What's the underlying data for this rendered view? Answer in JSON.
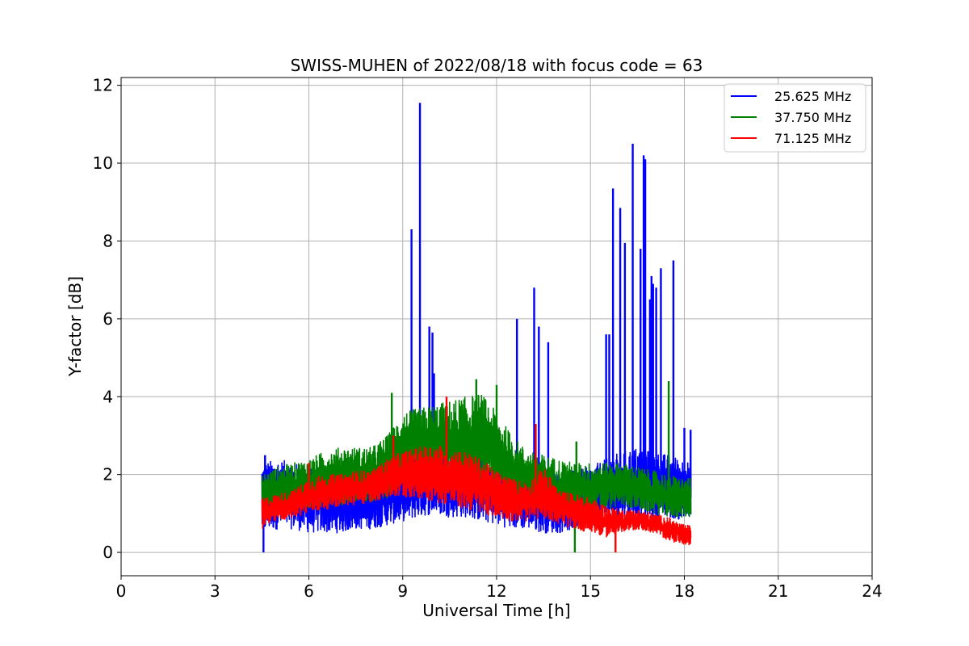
{
  "chart_data": {
    "type": "line",
    "title": "SWISS-MUHEN of 2022/08/18 with focus code = 63",
    "xlabel": "Universal Time [h]",
    "ylabel": "Y-factor [dB]",
    "xlim": [
      0,
      24
    ],
    "ylim": [
      -0.6,
      12.2
    ],
    "xticks": [
      0,
      3,
      6,
      9,
      12,
      15,
      18,
      21,
      24
    ],
    "yticks": [
      0,
      2,
      4,
      6,
      8,
      10,
      12
    ],
    "grid": true,
    "legend_position": "top-right",
    "series": [
      {
        "name": "25.625 MHz",
        "color": "#0000ff",
        "band": [
          [
            4.5,
            0.5,
            2.3
          ],
          [
            5.0,
            0.6,
            2.4
          ],
          [
            5.5,
            0.6,
            2.3
          ],
          [
            6.0,
            0.5,
            2.2
          ],
          [
            6.5,
            0.5,
            2.1
          ],
          [
            7.0,
            0.5,
            2.0
          ],
          [
            7.5,
            0.6,
            1.9
          ],
          [
            8.0,
            0.6,
            2.0
          ],
          [
            8.5,
            0.7,
            2.1
          ],
          [
            9.0,
            0.8,
            2.3
          ],
          [
            9.5,
            0.9,
            2.5
          ],
          [
            10.0,
            1.0,
            2.6
          ],
          [
            10.5,
            0.9,
            2.6
          ],
          [
            11.0,
            0.9,
            2.6
          ],
          [
            11.5,
            0.8,
            2.5
          ],
          [
            12.0,
            0.7,
            2.3
          ],
          [
            12.5,
            0.6,
            2.3
          ],
          [
            13.0,
            0.6,
            2.2
          ],
          [
            13.5,
            0.5,
            2.2
          ],
          [
            14.0,
            0.5,
            2.1
          ],
          [
            14.5,
            0.6,
            2.1
          ],
          [
            15.0,
            0.7,
            2.2
          ],
          [
            15.5,
            0.8,
            2.4
          ],
          [
            16.0,
            0.9,
            2.6
          ],
          [
            16.5,
            0.9,
            2.7
          ],
          [
            17.0,
            0.9,
            2.6
          ],
          [
            17.5,
            0.9,
            2.5
          ],
          [
            18.0,
            0.8,
            2.4
          ],
          [
            18.2,
            0.8,
            2.3
          ]
        ],
        "spikes": [
          [
            4.55,
            0.0
          ],
          [
            4.6,
            2.5
          ],
          [
            9.28,
            8.3
          ],
          [
            9.55,
            11.55
          ],
          [
            9.85,
            5.8
          ],
          [
            9.95,
            5.65
          ],
          [
            10.0,
            4.6
          ],
          [
            12.65,
            6.0
          ],
          [
            13.2,
            6.8
          ],
          [
            13.35,
            5.8
          ],
          [
            13.65,
            5.4
          ],
          [
            15.5,
            5.6
          ],
          [
            15.6,
            5.6
          ],
          [
            15.72,
            9.35
          ],
          [
            15.95,
            8.85
          ],
          [
            16.1,
            7.95
          ],
          [
            16.35,
            10.5
          ],
          [
            16.6,
            7.8
          ],
          [
            16.7,
            10.2
          ],
          [
            16.75,
            10.1
          ],
          [
            16.9,
            6.5
          ],
          [
            16.95,
            7.1
          ],
          [
            17.0,
            6.9
          ],
          [
            17.1,
            6.8
          ],
          [
            17.25,
            7.3
          ],
          [
            17.65,
            7.5
          ],
          [
            18.0,
            3.2
          ],
          [
            18.2,
            3.15
          ]
        ]
      },
      {
        "name": "37.750 MHz",
        "color": "#008000",
        "band": [
          [
            4.5,
            1.0,
            2.0
          ],
          [
            5.0,
            1.0,
            2.2
          ],
          [
            5.5,
            1.1,
            2.3
          ],
          [
            6.0,
            1.1,
            2.4
          ],
          [
            6.5,
            1.2,
            2.6
          ],
          [
            7.0,
            1.2,
            2.7
          ],
          [
            7.5,
            1.3,
            2.7
          ],
          [
            8.0,
            1.3,
            2.7
          ],
          [
            8.5,
            1.4,
            3.0
          ],
          [
            9.0,
            1.8,
            3.6
          ],
          [
            9.5,
            1.8,
            3.7
          ],
          [
            10.0,
            1.7,
            3.8
          ],
          [
            10.5,
            1.7,
            3.9
          ],
          [
            11.0,
            1.6,
            4.0
          ],
          [
            11.5,
            1.5,
            4.1
          ],
          [
            12.0,
            1.4,
            3.6
          ],
          [
            12.5,
            1.3,
            3.0
          ],
          [
            13.0,
            1.2,
            2.6
          ],
          [
            13.5,
            1.1,
            2.5
          ],
          [
            14.0,
            1.0,
            2.4
          ],
          [
            14.5,
            1.0,
            2.3
          ],
          [
            15.0,
            1.0,
            2.3
          ],
          [
            15.5,
            1.1,
            2.3
          ],
          [
            16.0,
            1.2,
            2.3
          ],
          [
            16.5,
            1.1,
            2.2
          ],
          [
            17.0,
            1.0,
            2.1
          ],
          [
            17.5,
            0.9,
            2.0
          ],
          [
            18.0,
            0.9,
            1.9
          ],
          [
            18.2,
            0.9,
            1.9
          ]
        ],
        "spikes": [
          [
            8.65,
            4.1
          ],
          [
            11.35,
            4.45
          ],
          [
            12.0,
            4.3
          ],
          [
            14.5,
            0.0
          ],
          [
            14.55,
            2.85
          ],
          [
            17.5,
            4.4
          ]
        ]
      },
      {
        "name": "71.125 MHz",
        "color": "#ff0000",
        "band": [
          [
            4.5,
            0.6,
            1.4
          ],
          [
            5.0,
            0.8,
            1.5
          ],
          [
            5.5,
            0.9,
            1.6
          ],
          [
            6.0,
            1.0,
            1.9
          ],
          [
            6.5,
            1.1,
            2.0
          ],
          [
            7.0,
            1.2,
            2.0
          ],
          [
            7.5,
            1.2,
            2.1
          ],
          [
            8.0,
            1.3,
            2.1
          ],
          [
            8.5,
            1.4,
            2.4
          ],
          [
            9.0,
            1.4,
            2.6
          ],
          [
            9.5,
            1.4,
            2.7
          ],
          [
            10.0,
            1.3,
            2.8
          ],
          [
            10.5,
            1.2,
            2.7
          ],
          [
            11.0,
            1.1,
            2.6
          ],
          [
            11.5,
            1.0,
            2.4
          ],
          [
            12.0,
            0.9,
            2.1
          ],
          [
            12.5,
            0.8,
            1.9
          ],
          [
            13.0,
            0.8,
            1.8
          ],
          [
            13.5,
            0.9,
            2.2
          ],
          [
            14.0,
            0.7,
            1.6
          ],
          [
            14.5,
            0.6,
            1.5
          ],
          [
            15.0,
            0.5,
            1.4
          ],
          [
            15.5,
            0.4,
            1.2
          ],
          [
            16.0,
            0.5,
            1.1
          ],
          [
            16.5,
            0.6,
            1.1
          ],
          [
            17.0,
            0.5,
            1.0
          ],
          [
            17.5,
            0.3,
            0.9
          ],
          [
            18.0,
            0.2,
            0.7
          ],
          [
            18.2,
            0.2,
            0.7
          ]
        ],
        "spikes": [
          [
            6.0,
            2.3
          ],
          [
            8.7,
            3.0
          ],
          [
            10.4,
            4.0
          ],
          [
            13.25,
            3.3
          ],
          [
            15.8,
            0.0
          ]
        ]
      }
    ]
  }
}
